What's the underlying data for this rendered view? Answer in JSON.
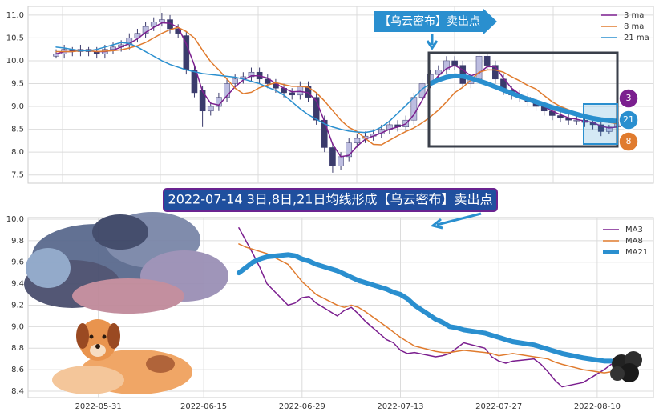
{
  "chart_data": [
    {
      "type": "candlestick",
      "open": [
        10.1,
        10.15,
        10.25,
        10.2,
        10.25,
        10.2,
        10.15,
        10.25,
        10.3,
        10.35,
        10.5,
        10.6,
        10.75,
        10.85,
        10.9,
        10.7,
        10.55,
        9.8,
        9.35,
        8.9,
        9.0,
        9.2,
        9.5,
        9.6,
        9.65,
        9.75,
        9.6,
        9.5,
        9.4,
        9.3,
        9.25,
        9.45,
        9.2,
        8.7,
        8.1,
        7.7,
        7.9,
        8.2,
        8.3,
        8.35,
        8.4,
        8.5,
        8.6,
        8.55,
        8.7,
        9.2,
        9.5,
        9.7,
        9.8,
        10.0,
        9.9,
        9.5,
        9.6,
        10.1,
        9.9,
        9.6,
        9.35,
        9.25,
        9.2,
        9.1,
        9.0,
        8.9,
        8.8,
        8.75,
        8.7,
        8.7,
        8.65,
        8.6,
        8.45,
        8.55
      ],
      "high": [
        10.25,
        10.35,
        10.3,
        10.35,
        10.3,
        10.3,
        10.35,
        10.4,
        10.45,
        10.6,
        10.7,
        10.85,
        10.95,
        11.05,
        11.0,
        10.8,
        10.65,
        9.9,
        9.45,
        9.1,
        9.3,
        9.6,
        9.7,
        9.75,
        9.85,
        9.85,
        9.7,
        9.6,
        9.5,
        9.4,
        9.55,
        9.55,
        9.3,
        8.8,
        8.2,
        8.0,
        8.3,
        8.4,
        8.45,
        8.5,
        8.6,
        8.7,
        8.7,
        8.8,
        9.3,
        9.6,
        9.8,
        9.9,
        10.1,
        10.1,
        10.0,
        9.7,
        10.25,
        10.2,
        10.0,
        9.7,
        9.45,
        9.35,
        9.3,
        9.2,
        9.1,
        9.0,
        8.9,
        8.85,
        8.8,
        8.8,
        8.75,
        8.7,
        8.6,
        8.7
      ],
      "low": [
        10.05,
        10.05,
        10.1,
        10.1,
        10.1,
        10.05,
        10.05,
        10.15,
        10.2,
        10.25,
        10.4,
        10.5,
        10.65,
        10.75,
        10.6,
        10.5,
        9.7,
        9.2,
        8.55,
        8.8,
        8.9,
        9.1,
        9.4,
        9.5,
        9.55,
        9.5,
        9.4,
        9.3,
        9.2,
        9.15,
        9.15,
        9.1,
        8.6,
        8.0,
        7.55,
        7.6,
        7.8,
        8.1,
        8.2,
        8.25,
        8.3,
        8.4,
        8.45,
        8.45,
        8.6,
        9.1,
        9.4,
        9.6,
        9.7,
        9.8,
        9.4,
        9.4,
        9.5,
        9.8,
        9.5,
        9.25,
        9.15,
        9.1,
        9.0,
        8.9,
        8.8,
        8.7,
        8.65,
        8.6,
        8.6,
        8.55,
        8.5,
        8.35,
        8.4,
        8.5
      ],
      "close": [
        10.15,
        10.25,
        10.2,
        10.25,
        10.2,
        10.15,
        10.25,
        10.3,
        10.35,
        10.5,
        10.6,
        10.75,
        10.85,
        10.9,
        10.7,
        10.6,
        9.8,
        9.3,
        8.9,
        9.0,
        9.2,
        9.5,
        9.6,
        9.65,
        9.75,
        9.6,
        9.5,
        9.4,
        9.3,
        9.25,
        9.45,
        9.2,
        8.7,
        8.1,
        7.7,
        7.9,
        8.2,
        8.3,
        8.35,
        8.4,
        8.5,
        8.6,
        8.55,
        8.7,
        9.2,
        9.5,
        9.7,
        9.8,
        10.0,
        9.9,
        9.5,
        9.6,
        10.1,
        9.9,
        9.6,
        9.35,
        9.25,
        9.2,
        9.1,
        9.0,
        8.9,
        8.8,
        8.75,
        8.7,
        8.7,
        8.65,
        8.6,
        8.45,
        8.55,
        8.65
      ],
      "up_color": "#bdbde0",
      "down_color": "#3b3b6c",
      "series": [
        {
          "name": "3 ma",
          "color": "#7b1f8f",
          "values": [
            10.15,
            10.2,
            10.2,
            10.23,
            10.22,
            10.2,
            10.2,
            10.23,
            10.3,
            10.38,
            10.48,
            10.62,
            10.73,
            10.83,
            10.82,
            10.73,
            10.37,
            9.9,
            9.33,
            9.07,
            9.03,
            9.23,
            9.43,
            9.58,
            9.67,
            9.67,
            9.62,
            9.5,
            9.4,
            9.32,
            9.33,
            9.3,
            9.12,
            8.67,
            8.17,
            7.9,
            7.93,
            8.13,
            8.28,
            8.35,
            8.42,
            8.5,
            8.55,
            8.62,
            8.82,
            9.13,
            9.47,
            9.67,
            9.83,
            9.9,
            9.8,
            9.67,
            9.73,
            9.87,
            9.87,
            9.62,
            9.4,
            9.27,
            9.18,
            9.1,
            9.0,
            8.9,
            8.82,
            8.75,
            8.72,
            8.68,
            8.65,
            8.57,
            8.53,
            8.55
          ]
        },
        {
          "name": "8 ma",
          "color": "#e07b2e",
          "values": [
            10.2,
            10.2,
            10.2,
            10.22,
            10.22,
            10.2,
            10.21,
            10.22,
            10.24,
            10.28,
            10.33,
            10.4,
            10.5,
            10.6,
            10.68,
            10.73,
            10.64,
            10.5,
            10.23,
            9.98,
            9.8,
            9.6,
            9.4,
            9.28,
            9.31,
            9.41,
            9.47,
            9.52,
            9.48,
            9.44,
            9.44,
            9.42,
            9.3,
            9.12,
            8.91,
            8.7,
            8.54,
            8.45,
            8.3,
            8.17,
            8.16,
            8.26,
            8.36,
            8.45,
            8.53,
            8.64,
            8.77,
            8.92,
            9.1,
            9.3,
            9.42,
            9.58,
            9.75,
            9.8,
            9.8,
            9.75,
            9.65,
            9.56,
            9.46,
            9.38,
            9.24,
            9.1,
            9.0,
            8.93,
            8.86,
            8.8,
            8.74,
            8.68,
            8.65,
            8.62
          ]
        },
        {
          "name": "21 ma",
          "color": "#2a8fcf",
          "values": [
            10.3,
            10.28,
            10.25,
            10.22,
            10.22,
            10.25,
            10.3,
            10.35,
            10.4,
            10.38,
            10.3,
            10.2,
            10.1,
            10.0,
            9.92,
            9.86,
            9.8,
            9.76,
            9.72,
            9.7,
            9.68,
            9.66,
            9.64,
            9.6,
            9.55,
            9.5,
            9.42,
            9.35,
            9.25,
            9.1,
            8.95,
            8.82,
            8.72,
            8.62,
            8.55,
            8.5,
            8.46,
            8.44,
            8.43,
            8.46,
            8.55,
            8.68,
            8.85,
            9.02,
            9.2,
            9.38,
            9.5,
            9.58,
            9.64,
            9.67,
            9.66,
            9.62,
            9.56,
            9.5,
            9.43,
            9.36,
            9.29,
            9.22,
            9.16,
            9.1,
            9.04,
            8.98,
            8.93,
            8.88,
            8.83,
            8.78,
            8.74,
            8.71,
            8.69,
            8.68
          ]
        }
      ],
      "ylim": [
        7.32,
        11.19
      ],
      "yticks": [
        7.5,
        {
          "value": 8.0,
          "label": "8.0"
        },
        8.5,
        {
          "value": 9.0,
          "label": "9.0"
        },
        9.5,
        {
          "value": 10.0,
          "label": "10.0"
        },
        10.5,
        {
          "value": 11.0,
          "label": "11.0"
        }
      ],
      "grid": true,
      "legend": "upper right",
      "banner": "【乌云密布】卖出点",
      "markers": [
        {
          "label": "3",
          "color": "#7b1f8f"
        },
        {
          "label": "21",
          "color": "#2a8fcf"
        },
        {
          "label": "8",
          "color": "#e07b2e"
        }
      ]
    },
    {
      "type": "line",
      "annotation": "2022-07-14 3日,8日,21日均线形成【乌云密布】卖出点",
      "x": [
        "2022-06-20",
        "2022-06-21",
        "2022-06-22",
        "2022-06-23",
        "2022-06-24",
        "2022-06-27",
        "2022-06-28",
        "2022-06-29",
        "2022-06-30",
        "2022-07-01",
        "2022-07-04",
        "2022-07-05",
        "2022-07-06",
        "2022-07-07",
        "2022-07-08",
        "2022-07-11",
        "2022-07-12",
        "2022-07-13",
        "2022-07-14",
        "2022-07-15",
        "2022-07-18",
        "2022-07-19",
        "2022-07-20",
        "2022-07-21",
        "2022-07-22",
        "2022-07-25",
        "2022-07-26",
        "2022-07-27",
        "2022-07-28",
        "2022-07-29",
        "2022-08-01",
        "2022-08-02",
        "2022-08-03",
        "2022-08-04",
        "2022-08-05",
        "2022-08-08",
        "2022-08-09",
        "2022-08-10",
        "2022-08-11",
        "2022-08-12"
      ],
      "series": [
        {
          "name": "MA3",
          "color": "#7b1f8f",
          "width": 1.5,
          "values": [
            9.92,
            9.8,
            9.68,
            9.55,
            9.4,
            9.2,
            9.22,
            9.27,
            9.28,
            9.22,
            9.1,
            9.15,
            9.18,
            9.12,
            9.05,
            8.88,
            8.85,
            8.78,
            8.75,
            8.76,
            8.72,
            8.73,
            8.75,
            8.8,
            8.85,
            8.8,
            8.72,
            8.68,
            8.66,
            8.68,
            8.7,
            8.65,
            8.58,
            8.5,
            8.44,
            8.48,
            8.52,
            8.56,
            8.6,
            8.65
          ]
        },
        {
          "name": "MA8",
          "color": "#e07b2e",
          "width": 1.5,
          "values": [
            9.77,
            9.74,
            9.72,
            9.7,
            9.68,
            9.58,
            9.5,
            9.42,
            9.36,
            9.3,
            9.2,
            9.18,
            9.2,
            9.18,
            9.14,
            9.0,
            8.95,
            8.9,
            8.86,
            8.82,
            8.77,
            8.76,
            8.76,
            8.77,
            8.78,
            8.76,
            8.75,
            8.73,
            8.74,
            8.75,
            8.72,
            8.71,
            8.7,
            8.67,
            8.65,
            8.6,
            8.59,
            8.58,
            8.57,
            8.58
          ]
        },
        {
          "name": "MA21",
          "color": "#2a8fcf",
          "width": 6,
          "values": [
            9.5,
            9.55,
            9.6,
            9.63,
            9.65,
            9.67,
            9.66,
            9.63,
            9.61,
            9.58,
            9.52,
            9.49,
            9.46,
            9.43,
            9.41,
            9.35,
            9.32,
            9.3,
            9.26,
            9.2,
            9.07,
            9.04,
            9.0,
            8.99,
            8.97,
            8.94,
            8.92,
            8.9,
            8.88,
            8.86,
            8.83,
            8.81,
            8.79,
            8.77,
            8.75,
            8.71,
            8.7,
            8.69,
            8.68,
            8.68
          ]
        }
      ],
      "xlim": [
        "2022-05-21",
        "2022-08-18"
      ],
      "xticks": [
        "2022-05-31",
        "2022-06-15",
        "2022-06-29",
        "2022-07-13",
        "2022-07-27",
        "2022-08-10"
      ],
      "ylim": [
        8.34,
        10.015
      ],
      "yticks": [
        8.4,
        8.6,
        8.8,
        {
          "value": 9.0,
          "label": "9.0"
        },
        9.2,
        9.4,
        9.6,
        9.8,
        {
          "value": 10.0,
          "label": "10.0"
        }
      ],
      "grid": true,
      "legend": "upper right"
    }
  ]
}
